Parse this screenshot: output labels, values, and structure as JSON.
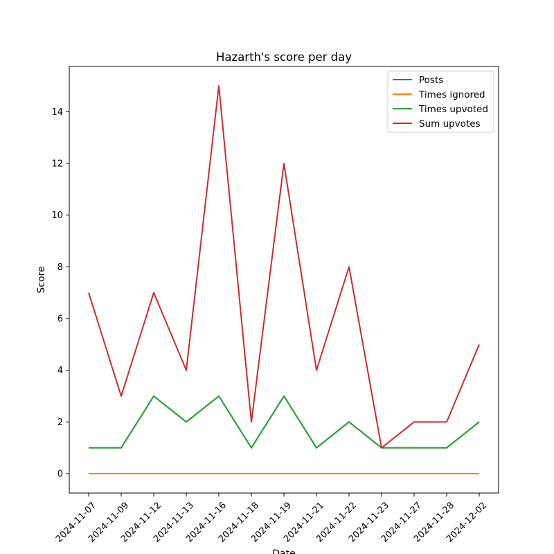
{
  "chart_data": {
    "type": "line",
    "title": "Hazarth's score per day",
    "xlabel": "Date",
    "ylabel": "Score",
    "categories": [
      "2024-11-07",
      "2024-11-09",
      "2024-11-12",
      "2024-11-13",
      "2024-11-16",
      "2024-11-18",
      "2024-11-19",
      "2024-11-21",
      "2024-11-22",
      "2024-11-23",
      "2024-11-27",
      "2024-11-28",
      "2024-12-02"
    ],
    "yticks": [
      0,
      2,
      4,
      6,
      8,
      10,
      12,
      14
    ],
    "ylim": [
      -0.75,
      15.75
    ],
    "grid": false,
    "legend_position": "top-right",
    "series": [
      {
        "name": "Posts",
        "color": "#1f77b4",
        "values": [
          1,
          1,
          3,
          2,
          3,
          1,
          3,
          1,
          2,
          1,
          1,
          1,
          2
        ]
      },
      {
        "name": "Times ignored",
        "color": "#ff7f0e",
        "values": [
          0,
          0,
          0,
          0,
          0,
          0,
          0,
          0,
          0,
          0,
          0,
          0,
          0
        ]
      },
      {
        "name": "Times upvoted",
        "color": "#2ca02c",
        "values": [
          1,
          1,
          3,
          2,
          3,
          1,
          3,
          1,
          2,
          1,
          1,
          1,
          2
        ]
      },
      {
        "name": "Sum upvotes",
        "color": "#d62728",
        "values": [
          7,
          3,
          7,
          4,
          15,
          2,
          12,
          4,
          8,
          1,
          2,
          2,
          5
        ]
      }
    ]
  }
}
